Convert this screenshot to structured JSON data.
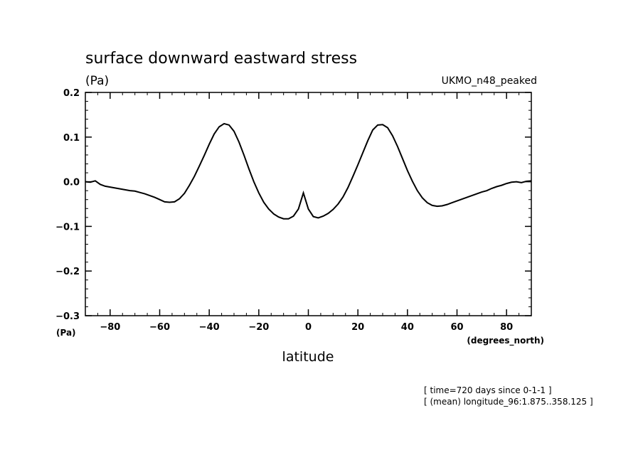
{
  "chart_data": {
    "type": "line",
    "title": "surface downward eastward stress",
    "units": "(Pa)",
    "dataset_label": "UKMO_n48_peaked",
    "xlabel": "latitude",
    "x_units": "(degrees_north)",
    "y_units": "(Pa)",
    "xlim": [
      -90,
      90
    ],
    "ylim": [
      -0.3,
      0.2
    ],
    "x_ticks": [
      -80,
      -60,
      -40,
      -20,
      0,
      20,
      40,
      60,
      80
    ],
    "x_tick_labels": [
      "−80",
      "−60",
      "−40",
      "−20",
      "0",
      "20",
      "40",
      "60",
      "80"
    ],
    "y_ticks": [
      -0.3,
      -0.2,
      -0.1,
      0.0,
      0.1,
      0.2
    ],
    "y_tick_labels": [
      "−0.3",
      "−0.2",
      "−0.1",
      "0.0",
      "0.1",
      "0.2"
    ],
    "grid": false,
    "notes": [
      "[ time=720 days since 0-1-1 ]",
      "[ (mean) longitude_96:1.875..358.125 ]"
    ],
    "series": [
      {
        "x": [
          -90,
          -88,
          -86,
          -84,
          -82,
          -80,
          -78,
          -76,
          -74,
          -72,
          -70,
          -68,
          -66,
          -64,
          -62,
          -60,
          -58,
          -56,
          -54,
          -52,
          -50,
          -48,
          -46,
          -44,
          -42,
          -40,
          -38,
          -36,
          -34,
          -32,
          -30,
          -28,
          -26,
          -24,
          -22,
          -20,
          -18,
          -16,
          -14,
          -12,
          -10,
          -8,
          -6,
          -4,
          -2,
          0,
          2,
          4,
          6,
          8,
          10,
          12,
          14,
          16,
          18,
          20,
          22,
          24,
          26,
          28,
          30,
          32,
          34,
          36,
          38,
          40,
          42,
          44,
          46,
          48,
          50,
          52,
          54,
          56,
          58,
          60,
          62,
          64,
          66,
          68,
          70,
          72,
          74,
          76,
          78,
          80,
          82,
          84,
          86,
          88,
          90
        ],
        "values": [
          0.0,
          -0.001,
          0.002,
          -0.006,
          -0.01,
          -0.012,
          -0.014,
          -0.016,
          -0.018,
          -0.02,
          -0.021,
          -0.024,
          -0.027,
          -0.031,
          -0.035,
          -0.04,
          -0.045,
          -0.046,
          -0.045,
          -0.038,
          -0.026,
          -0.008,
          0.012,
          0.035,
          0.059,
          0.084,
          0.107,
          0.123,
          0.13,
          0.127,
          0.113,
          0.089,
          0.06,
          0.029,
          0.0,
          -0.025,
          -0.046,
          -0.061,
          -0.072,
          -0.079,
          -0.083,
          -0.083,
          -0.077,
          -0.061,
          -0.025,
          -0.061,
          -0.078,
          -0.081,
          -0.077,
          -0.071,
          -0.062,
          -0.05,
          -0.034,
          -0.013,
          0.012,
          0.038,
          0.065,
          0.092,
          0.116,
          0.127,
          0.128,
          0.121,
          0.103,
          0.079,
          0.052,
          0.025,
          0.001,
          -0.02,
          -0.036,
          -0.047,
          -0.053,
          -0.055,
          -0.054,
          -0.051,
          -0.047,
          -0.043,
          -0.039,
          -0.035,
          -0.031,
          -0.027,
          -0.023,
          -0.02,
          -0.015,
          -0.011,
          -0.008,
          -0.004,
          -0.001,
          0.0,
          -0.002,
          0.001,
          0.002
        ]
      }
    ]
  }
}
